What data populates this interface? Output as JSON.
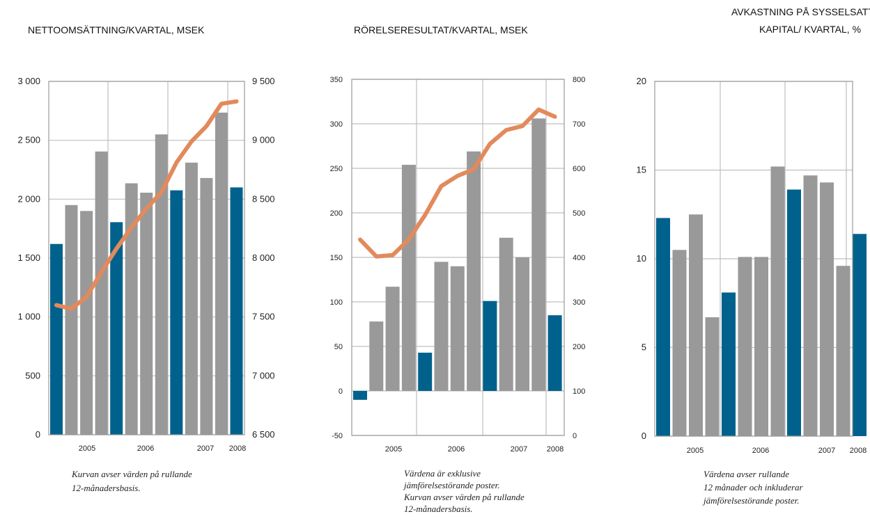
{
  "colors": {
    "highlight": "#00628c",
    "bar": "#999999",
    "line": "#e28a5c",
    "grid": "#bfbfbf",
    "frame": "#999999"
  },
  "chart_data": [
    {
      "type": "bar",
      "title": "NETTOOMSÄTTNING/KVARTAL, MSEK",
      "left_ylim": [
        0,
        3000
      ],
      "left_ticks": [
        "0",
        "500",
        "1 000",
        "1 500",
        "2 000",
        "2 500",
        "3 000"
      ],
      "right_ylim": [
        6500,
        9500
      ],
      "right_ticks": [
        "6 500",
        "7 000",
        "7 500",
        "8 000",
        "8 500",
        "9 000",
        "9 500"
      ],
      "x_labels": [
        "2005",
        "2006",
        "2007",
        "2008"
      ],
      "bars": [
        1620,
        1950,
        1900,
        2405,
        1805,
        2135,
        2055,
        2550,
        2075,
        2310,
        2180,
        2735,
        2100
      ],
      "highlight": [
        1,
        0,
        0,
        0,
        1,
        0,
        0,
        0,
        1,
        0,
        0,
        0,
        1
      ],
      "line": [
        7600,
        7570,
        7670,
        7880,
        8080,
        8260,
        8420,
        8560,
        8810,
        8990,
        9120,
        9310,
        9330
      ],
      "grid": true,
      "note": [
        "Kurvan avser värden på rullande",
        "12-månadersbasis."
      ]
    },
    {
      "type": "bar",
      "title": "RÖRELSERESULTAT/KVARTAL, MSEK",
      "left_ylim": [
        -50,
        350
      ],
      "left_ticks": [
        "-50",
        "0",
        "50",
        "100",
        "150",
        "200",
        "250",
        "300",
        "350"
      ],
      "right_ylim": [
        0,
        800
      ],
      "right_ticks": [
        "0",
        "100",
        "200",
        "300",
        "400",
        "500",
        "600",
        "700",
        "800"
      ],
      "x_labels": [
        "2005",
        "2006",
        "2007",
        "2008"
      ],
      "bars": [
        -10,
        78,
        117,
        254,
        43,
        145,
        140,
        269,
        101,
        172,
        150,
        306,
        85
      ],
      "highlight": [
        1,
        0,
        0,
        0,
        1,
        0,
        0,
        0,
        1,
        0,
        0,
        0,
        1
      ],
      "line": [
        440,
        402,
        405,
        440,
        495,
        560,
        583,
        598,
        655,
        686,
        695,
        732,
        716
      ],
      "grid": true,
      "note": [
        "Värdena är exklusive",
        "jämförelsestörande poster.",
        "Kurvan avser värden på rullande",
        "12-månadersbasis."
      ]
    },
    {
      "type": "bar",
      "title": [
        "AVKASTNING PÅ SYSSELSATT",
        "KAPITAL/ KVARTAL, %"
      ],
      "left_ylim": [
        0,
        20
      ],
      "left_ticks": [
        "0",
        "5",
        "10",
        "15",
        "20"
      ],
      "x_labels": [
        "2005",
        "2006",
        "2007",
        "2008"
      ],
      "bars": [
        12.3,
        10.5,
        12.5,
        6.7,
        8.1,
        10.1,
        10.1,
        15.2,
        13.9,
        14.7,
        14.3,
        9.6,
        11.4
      ],
      "highlight": [
        1,
        0,
        0,
        0,
        1,
        0,
        0,
        0,
        1,
        0,
        0,
        0,
        1
      ],
      "grid": true,
      "note": [
        "Värdena avser rullande",
        "12 månader och inkluderar",
        "jämförelsestörande poster."
      ]
    }
  ]
}
